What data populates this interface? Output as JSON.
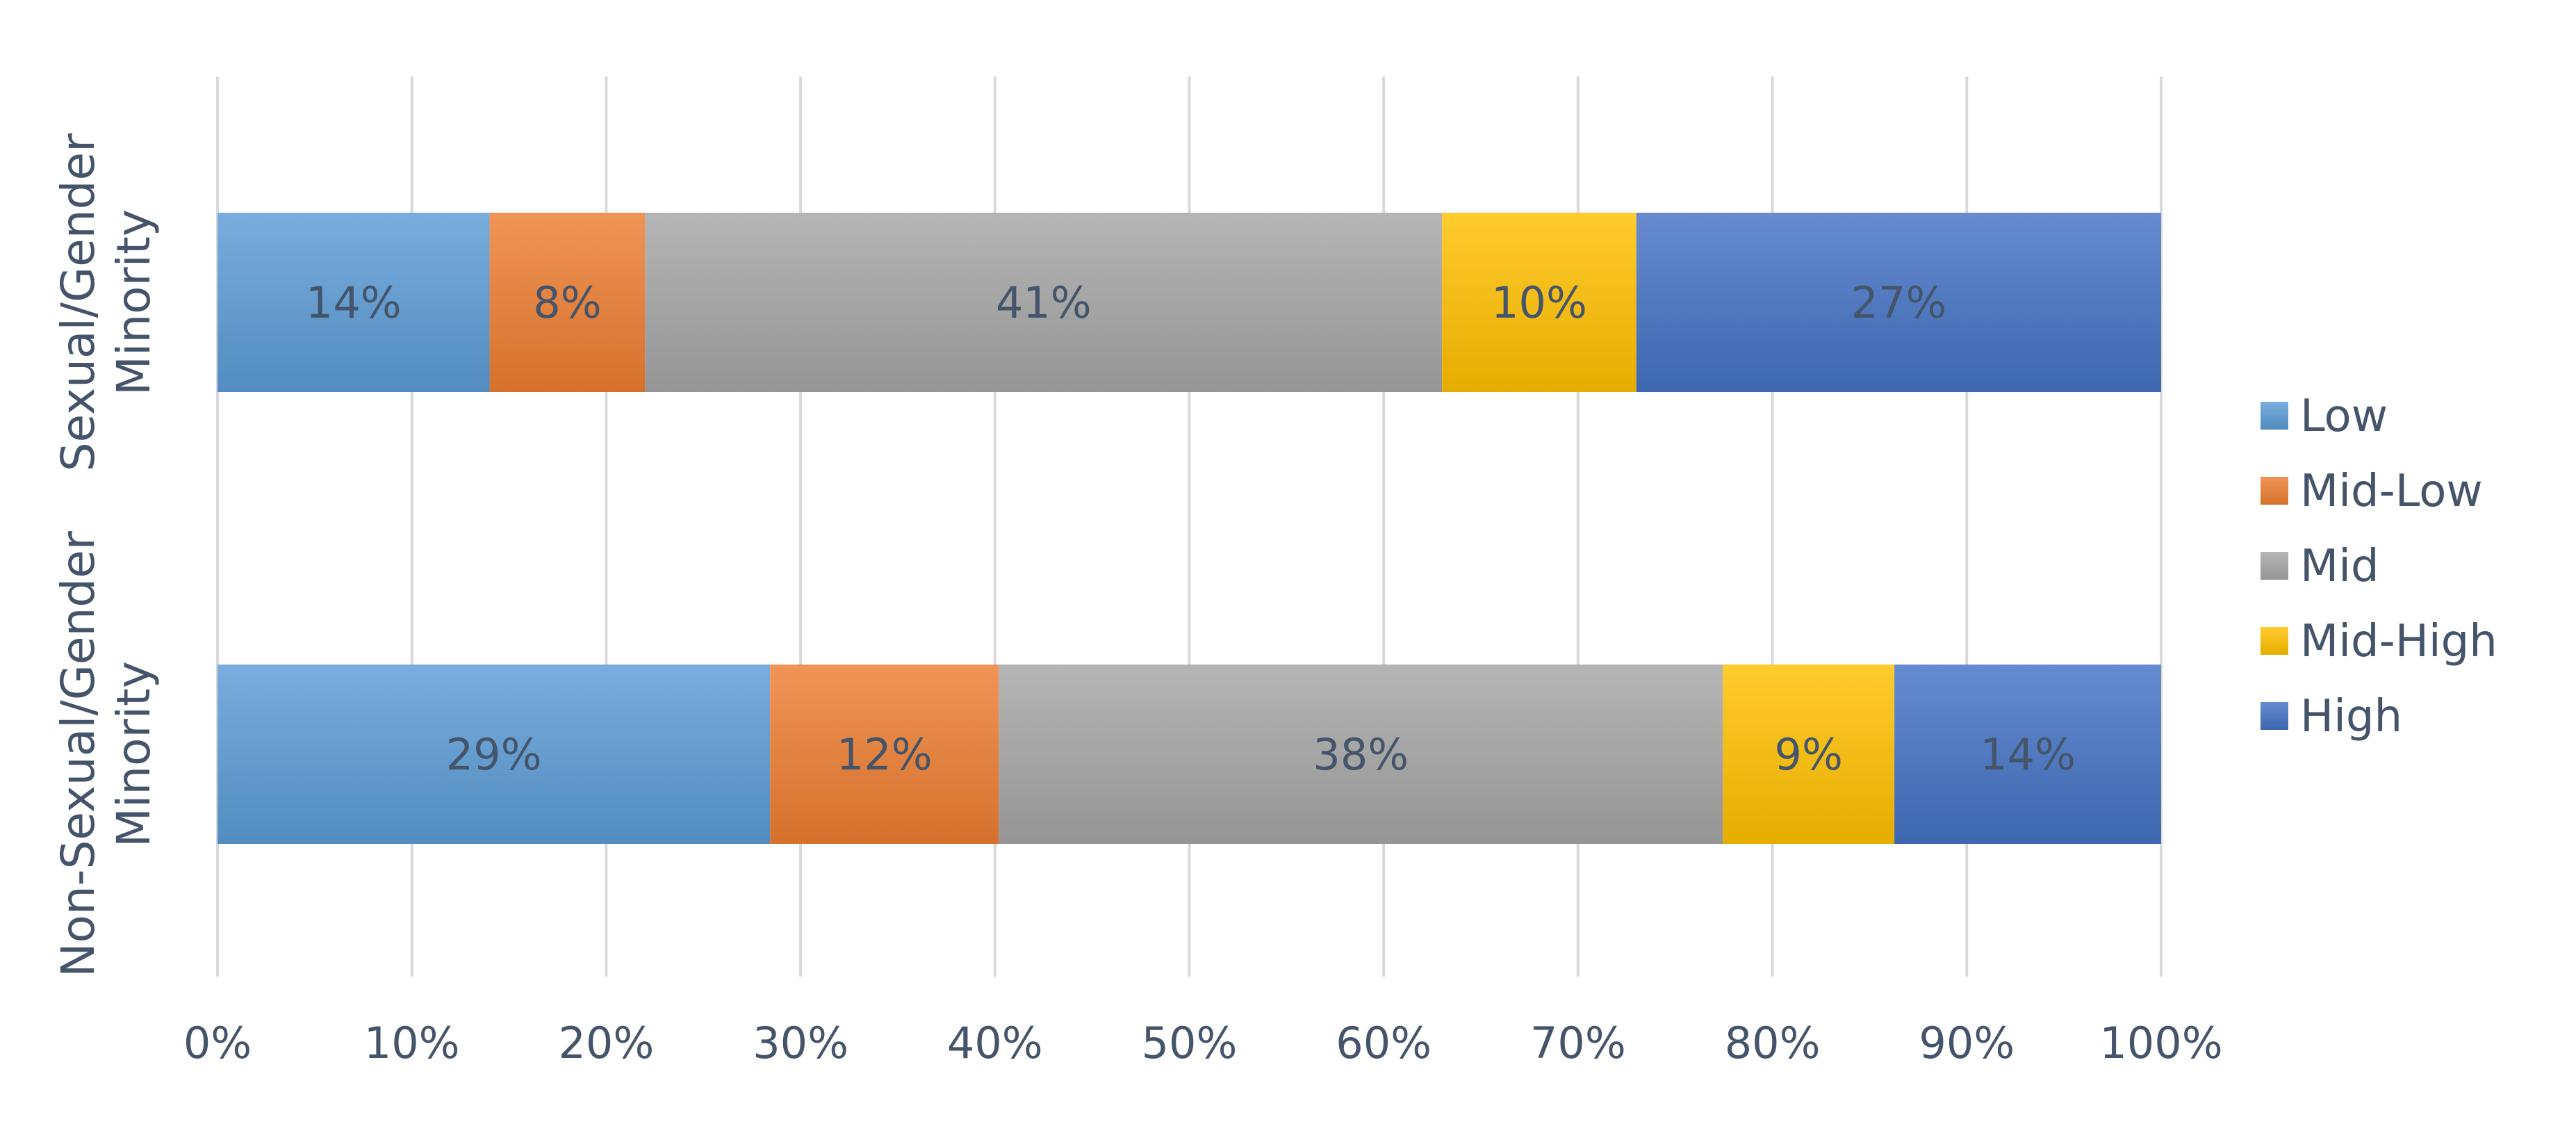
{
  "chart_data": {
    "type": "bar",
    "orientation": "horizontal",
    "stacked": "percent",
    "categories": [
      [
        "Sexual/Gender",
        "Minority"
      ],
      [
        "Non-Sexual/Gender",
        "Minority"
      ]
    ],
    "series": [
      {
        "name": "Low",
        "values": [
          14,
          29
        ],
        "labels": [
          "14%",
          "29%"
        ],
        "color": "#5B9BD5"
      },
      {
        "name": "Mid-Low",
        "values": [
          8,
          12
        ],
        "labels": [
          "8%",
          "12%"
        ],
        "color": "#ED7D31"
      },
      {
        "name": "Mid",
        "values": [
          41,
          38
        ],
        "labels": [
          "41%",
          "38%"
        ],
        "color": "#A5A5A5"
      },
      {
        "name": "Mid-High",
        "values": [
          10,
          9
        ],
        "labels": [
          "10%",
          "9%"
        ],
        "color": "#FFC000"
      },
      {
        "name": "High",
        "values": [
          27,
          14
        ],
        "labels": [
          "27%",
          "14%"
        ],
        "color": "#4472C4"
      }
    ],
    "xlim": [
      0,
      100
    ],
    "x_ticks": [
      "0%",
      "10%",
      "20%",
      "30%",
      "40%",
      "50%",
      "60%",
      "70%",
      "80%",
      "90%",
      "100%"
    ],
    "grid": true,
    "legend_position": "right"
  }
}
